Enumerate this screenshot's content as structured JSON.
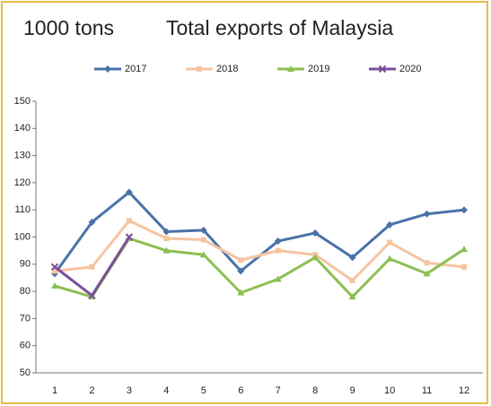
{
  "chart_data": {
    "type": "line",
    "unit_label": "1000 tons",
    "title": "Total exports of Malaysia",
    "categories": [
      "1",
      "2",
      "3",
      "4",
      "5",
      "6",
      "7",
      "8",
      "9",
      "10",
      "11",
      "12"
    ],
    "series": [
      {
        "name": "2017",
        "color": "#4a72a8",
        "marker": "diamond",
        "values": [
          86.5,
          105.5,
          116.5,
          102,
          102.5,
          87.5,
          98.5,
          101.5,
          92.5,
          104.5,
          108.5,
          110
        ]
      },
      {
        "name": "2018",
        "color": "#f5c4a0",
        "marker": "square",
        "values": [
          87.5,
          89,
          106,
          99.5,
          99,
          91.5,
          95,
          93.5,
          84,
          98,
          90.5,
          89
        ]
      },
      {
        "name": "2019",
        "color": "#8cbf52",
        "marker": "triangle",
        "values": [
          82,
          78,
          99.5,
          95,
          93.5,
          79.5,
          84.5,
          92.5,
          78,
          92,
          86.5,
          95.5
        ]
      },
      {
        "name": "2020",
        "color": "#7a4f9a",
        "marker": "x",
        "values": [
          89,
          78.5,
          100,
          null,
          null,
          null,
          null,
          null,
          null,
          null,
          null,
          null
        ]
      }
    ],
    "ylim": [
      50,
      150
    ],
    "yticks": [
      50,
      60,
      70,
      80,
      90,
      100,
      110,
      120,
      130,
      140,
      150
    ],
    "grid": false
  }
}
